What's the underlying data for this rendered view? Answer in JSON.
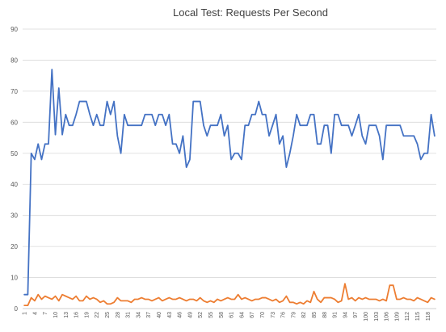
{
  "chart_data": {
    "type": "line",
    "title": "Local Test: Requests Per Second",
    "xlabel": "",
    "ylabel": "",
    "ylim": [
      0,
      90
    ],
    "yticks": [
      0,
      10,
      20,
      30,
      40,
      50,
      60,
      70,
      80,
      90
    ],
    "grid": true,
    "legend": "none",
    "x": [
      1,
      2,
      3,
      4,
      5,
      6,
      7,
      8,
      9,
      10,
      11,
      12,
      13,
      14,
      15,
      16,
      17,
      18,
      19,
      20,
      21,
      22,
      23,
      24,
      25,
      26,
      27,
      28,
      29,
      30,
      31,
      32,
      33,
      34,
      35,
      36,
      37,
      38,
      39,
      40,
      41,
      42,
      43,
      44,
      45,
      46,
      47,
      48,
      49,
      50,
      51,
      52,
      53,
      54,
      55,
      56,
      57,
      58,
      59,
      60,
      61,
      62,
      63,
      64,
      65,
      66,
      67,
      68,
      69,
      70,
      71,
      72,
      73,
      74,
      75,
      76,
      77,
      78,
      79,
      80,
      81,
      82,
      83,
      84,
      85,
      86,
      87,
      88,
      89,
      90,
      91,
      92,
      93,
      94,
      95,
      96,
      97,
      98,
      99,
      100,
      101,
      102,
      103,
      104,
      105,
      106,
      107,
      108,
      109,
      110,
      111,
      112,
      113,
      114,
      115,
      116,
      117,
      118,
      119,
      120
    ],
    "xtick_labels": [
      "1",
      "4",
      "7",
      "10",
      "13",
      "16",
      "19",
      "22",
      "25",
      "28",
      "31",
      "34",
      "37",
      "40",
      "43",
      "46",
      "49",
      "52",
      "55",
      "58",
      "61",
      "64",
      "67",
      "70",
      "73",
      "76",
      "79",
      "82",
      "85",
      "88",
      "91",
      "94",
      "97",
      "100",
      "103",
      "106",
      "109",
      "112",
      "115",
      "118"
    ],
    "series": [
      {
        "color": "#4472C4",
        "values": [
          4.5,
          4.5,
          50,
          48,
          53,
          48,
          53,
          53,
          77,
          56,
          71,
          56,
          62.5,
          59,
          59,
          62.5,
          66.7,
          66.7,
          66.7,
          62.5,
          59,
          62.5,
          59,
          59,
          66.7,
          62.5,
          66.7,
          55.6,
          50,
          62.5,
          59,
          59,
          59,
          59,
          59,
          62.5,
          62.5,
          62.5,
          59,
          62.5,
          62.5,
          59,
          62.5,
          53,
          53,
          50,
          55.6,
          45.5,
          48,
          66.7,
          66.7,
          66.7,
          59,
          55.6,
          59,
          59,
          59,
          62.5,
          55.6,
          59,
          48,
          50,
          50,
          48,
          59,
          59,
          62.5,
          62.5,
          66.7,
          62.5,
          62.5,
          55.6,
          59,
          62.5,
          53,
          55.6,
          45.5,
          50,
          55.6,
          62.5,
          59,
          59,
          59,
          62.5,
          62.5,
          53,
          53,
          59,
          59,
          50,
          62.5,
          62.5,
          59,
          59,
          59,
          55.6,
          59,
          62.5,
          55.6,
          53,
          59,
          59,
          59,
          55.6,
          48,
          59,
          59,
          59,
          59,
          59,
          55.6,
          55.6,
          55.6,
          55.6,
          53,
          48,
          50,
          50,
          62.5,
          55.6
        ]
      },
      {
        "color": "#ED7D31",
        "values": [
          1,
          1,
          3.5,
          2.5,
          4.5,
          3,
          4,
          3.5,
          3,
          4,
          2.5,
          4.5,
          4,
          3.5,
          3,
          4,
          2.5,
          2.5,
          4,
          3,
          3.5,
          3,
          2,
          2.5,
          1.5,
          1.5,
          2,
          3.5,
          2.5,
          2.5,
          2.5,
          2,
          3,
          3,
          3.5,
          3,
          3,
          2.5,
          3,
          3.5,
          2.5,
          3,
          3.5,
          3,
          3,
          3.5,
          3,
          2.5,
          3,
          3,
          2.5,
          3.5,
          2.5,
          2,
          2.5,
          2,
          3,
          2.5,
          3,
          3.5,
          3,
          3,
          4.5,
          3,
          3.5,
          3,
          2.5,
          3,
          3,
          3.5,
          3.5,
          3,
          2.5,
          3,
          2,
          2.5,
          4,
          2,
          2,
          1.5,
          2,
          1.5,
          2.5,
          2,
          5.5,
          3,
          2,
          3.5,
          3.5,
          3.5,
          3,
          2,
          2.5,
          8,
          3,
          3.5,
          2.5,
          3.5,
          3,
          3.5,
          3,
          3,
          3,
          2.5,
          3,
          2.5,
          7.5,
          7.5,
          3,
          3,
          3.5,
          3,
          3,
          2.5,
          3.5,
          3,
          2.5,
          2,
          3.5,
          3
        ]
      }
    ]
  }
}
